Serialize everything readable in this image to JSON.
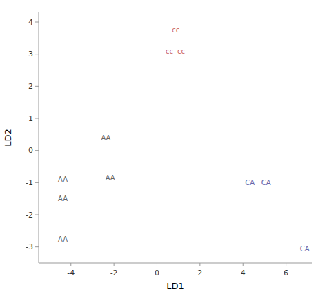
{
  "chart_data": {
    "type": "scatter",
    "marker": "text",
    "xlabel": "LD1",
    "ylabel": "LD2",
    "xlim": [
      -5.5,
      7.2
    ],
    "ylim": [
      -3.5,
      4.3
    ],
    "xticks": [
      -4,
      -2,
      0,
      2,
      4,
      6
    ],
    "yticks": [
      -3,
      -2,
      -1,
      0,
      1,
      2,
      3,
      4
    ],
    "grid": false,
    "series": [
      {
        "name": "cc",
        "color": "#cc6666",
        "x": [
          0.7,
          0.4,
          0.95
        ],
        "values": [
          3.75,
          3.1,
          3.1
        ]
      },
      {
        "name": "AA",
        "color": "#666666",
        "x": [
          -2.6,
          -4.6,
          -2.4,
          -4.6,
          -4.6
        ],
        "values": [
          0.4,
          -0.9,
          -0.85,
          -1.5,
          -2.75
        ]
      },
      {
        "name": "CA",
        "color": "#6666aa",
        "x": [
          4.1,
          4.85,
          6.65
        ],
        "values": [
          -1.0,
          -1.0,
          -3.05
        ]
      }
    ]
  }
}
